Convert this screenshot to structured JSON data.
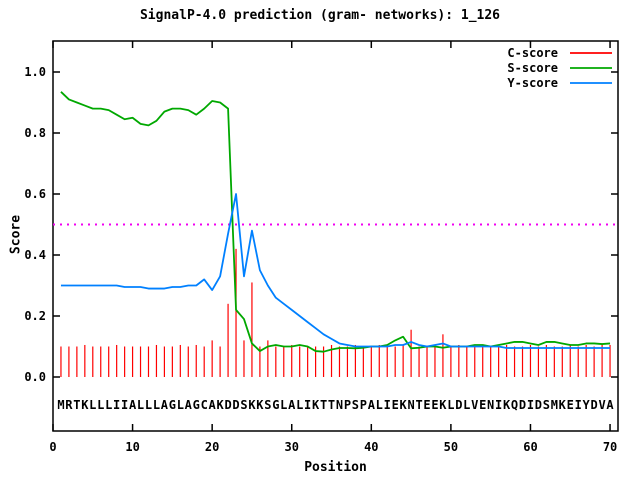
{
  "title": "SignalP-4.0 prediction (gram- networks): 1_126",
  "chart_data": {
    "type": "line",
    "title": "SignalP-4.0 prediction (gram- networks): 1_126",
    "xlabel": "Position",
    "ylabel": "Score",
    "xlim": [
      0,
      71
    ],
    "ylim": [
      0.0,
      1.0
    ],
    "grid": false,
    "legend_position": "top-right",
    "xticks": [
      0,
      10,
      20,
      30,
      40,
      50,
      60,
      70
    ],
    "ytick_labels": [
      "0.0",
      "0.2",
      "0.4",
      "0.6",
      "0.8",
      "1.0"
    ],
    "threshold_value": 0.5,
    "threshold_color": "#f000f0",
    "axis_color": "#000000",
    "sequence": "MRTKLLLIIALLLAGLAGCAKDDSKKSGLALIKTTNPSPALIEKNTEEKLDLVENIKQDIDSMKEIYDVA",
    "x": [
      1,
      2,
      3,
      4,
      5,
      6,
      7,
      8,
      9,
      10,
      11,
      12,
      13,
      14,
      15,
      16,
      17,
      18,
      19,
      20,
      21,
      22,
      23,
      24,
      25,
      26,
      27,
      28,
      29,
      30,
      31,
      32,
      33,
      34,
      35,
      36,
      37,
      38,
      39,
      40,
      41,
      42,
      43,
      44,
      45,
      46,
      47,
      48,
      49,
      50,
      51,
      52,
      53,
      54,
      55,
      56,
      57,
      58,
      59,
      60,
      61,
      62,
      63,
      64,
      65,
      66,
      67,
      68,
      69,
      70
    ],
    "series": [
      {
        "name": "C-score",
        "color": "#ff0000",
        "style": "impulses",
        "values": [
          0.1,
          0.1,
          0.1,
          0.105,
          0.1,
          0.1,
          0.1,
          0.105,
          0.1,
          0.1,
          0.1,
          0.1,
          0.105,
          0.1,
          0.1,
          0.105,
          0.1,
          0.105,
          0.1,
          0.12,
          0.1,
          0.24,
          0.42,
          0.12,
          0.31,
          0.1,
          0.12,
          0.1,
          0.1,
          0.105,
          0.1,
          0.1,
          0.1,
          0.1,
          0.105,
          0.1,
          0.1,
          0.105,
          0.1,
          0.1,
          0.105,
          0.1,
          0.1,
          0.105,
          0.155,
          0.1,
          0.1,
          0.105,
          0.14,
          0.1,
          0.105,
          0.1,
          0.1,
          0.105,
          0.1,
          0.1,
          0.105,
          0.1,
          0.1,
          0.105,
          0.1,
          0.105,
          0.1,
          0.1,
          0.105,
          0.1,
          0.105,
          0.1,
          0.105,
          0.105
        ]
      },
      {
        "name": "S-score",
        "color": "#00a800",
        "style": "line",
        "values": [
          0.935,
          0.91,
          0.9,
          0.89,
          0.88,
          0.88,
          0.875,
          0.86,
          0.845,
          0.85,
          0.83,
          0.825,
          0.84,
          0.87,
          0.88,
          0.88,
          0.875,
          0.86,
          0.88,
          0.905,
          0.9,
          0.88,
          0.22,
          0.19,
          0.11,
          0.085,
          0.1,
          0.105,
          0.1,
          0.1,
          0.105,
          0.1,
          0.085,
          0.083,
          0.09,
          0.095,
          0.095,
          0.094,
          0.096,
          0.1,
          0.1,
          0.105,
          0.12,
          0.132,
          0.094,
          0.096,
          0.1,
          0.1,
          0.096,
          0.1,
          0.1,
          0.1,
          0.105,
          0.105,
          0.1,
          0.105,
          0.11,
          0.115,
          0.115,
          0.11,
          0.105,
          0.115,
          0.115,
          0.11,
          0.105,
          0.105,
          0.11,
          0.11,
          0.108,
          0.11
        ]
      },
      {
        "name": "Y-score",
        "color": "#0080ff",
        "style": "line",
        "values": [
          0.3,
          0.3,
          0.3,
          0.3,
          0.3,
          0.3,
          0.3,
          0.3,
          0.295,
          0.295,
          0.295,
          0.29,
          0.29,
          0.29,
          0.295,
          0.295,
          0.3,
          0.3,
          0.32,
          0.285,
          0.33,
          0.47,
          0.6,
          0.33,
          0.48,
          0.35,
          0.3,
          0.26,
          0.24,
          0.22,
          0.2,
          0.18,
          0.16,
          0.14,
          0.125,
          0.11,
          0.105,
          0.1,
          0.1,
          0.1,
          0.1,
          0.1,
          0.105,
          0.105,
          0.115,
          0.105,
          0.1,
          0.105,
          0.11,
          0.1,
          0.1,
          0.1,
          0.1,
          0.1,
          0.1,
          0.1,
          0.095,
          0.095,
          0.095,
          0.095,
          0.095,
          0.095,
          0.095,
          0.095,
          0.095,
          0.095,
          0.095,
          0.095,
          0.095,
          0.095
        ]
      }
    ]
  }
}
